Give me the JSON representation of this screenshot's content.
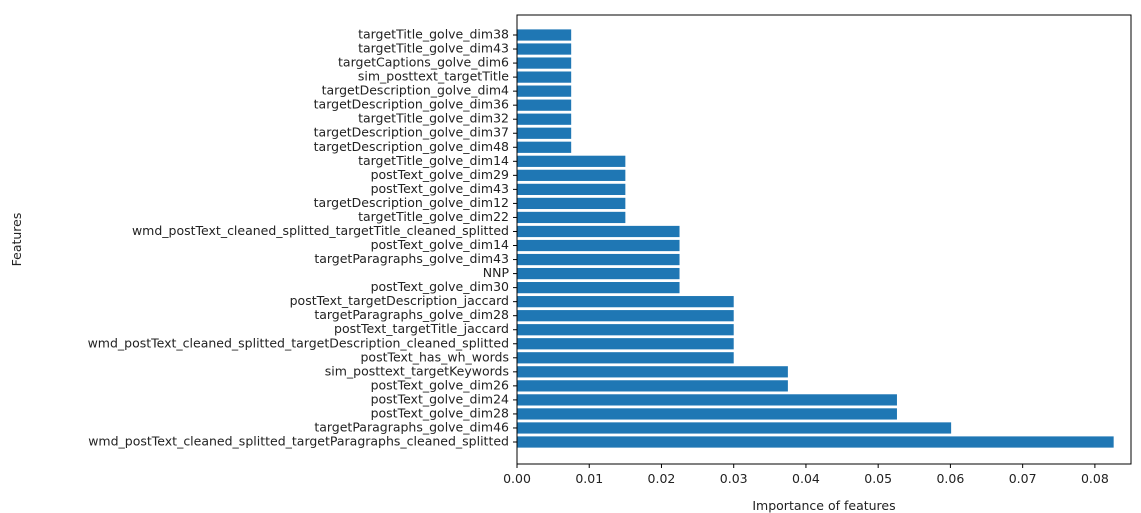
{
  "chart_data": {
    "type": "bar",
    "orientation": "horizontal",
    "xlabel": "Importance of features",
    "ylabel": "Features",
    "xlim": [
      0.0,
      0.085
    ],
    "x_ticks": [
      0.0,
      0.01,
      0.02,
      0.03,
      0.04,
      0.05,
      0.06,
      0.07,
      0.08
    ],
    "x_tick_labels": [
      "0.00",
      "0.01",
      "0.02",
      "0.03",
      "0.04",
      "0.05",
      "0.06",
      "0.07",
      "0.08"
    ],
    "grid": false,
    "bar_color": "#1f77b4",
    "categories": [
      "wmd_postText_cleaned_splitted_targetParagraphs_cleaned_splitted",
      "targetParagraphs_golve_dim46",
      "postText_golve_dim28",
      "postText_golve_dim24",
      "postText_golve_dim26",
      "sim_posttext_targetKeywords",
      "postText_has_wh_words",
      "wmd_postText_cleaned_splitted_targetDescription_cleaned_splitted",
      "postText_targetTitle_jaccard",
      "targetParagraphs_golve_dim28",
      "postText_targetDescription_jaccard",
      "postText_golve_dim30",
      "NNP",
      "targetParagraphs_golve_dim43",
      "postText_golve_dim14",
      "wmd_postText_cleaned_splitted_targetTitle_cleaned_splitted",
      "targetTitle_golve_dim22",
      "targetDescription_golve_dim12",
      "postText_golve_dim43",
      "postText_golve_dim29",
      "targetTitle_golve_dim14",
      "targetDescription_golve_dim48",
      "targetDescription_golve_dim37",
      "targetTitle_golve_dim32",
      "targetDescription_golve_dim36",
      "targetDescription_golve_dim4",
      "sim_posttext_targetTitle",
      "targetCaptions_golve_dim6",
      "targetTitle_golve_dim43",
      "targetTitle_golve_dim38"
    ],
    "values": [
      0.0826,
      0.0601,
      0.0526,
      0.0526,
      0.0375,
      0.0375,
      0.03,
      0.03,
      0.03,
      0.03,
      0.03,
      0.0225,
      0.0225,
      0.0225,
      0.0225,
      0.0225,
      0.015,
      0.015,
      0.015,
      0.015,
      0.015,
      0.0075,
      0.0075,
      0.0075,
      0.0075,
      0.0075,
      0.0075,
      0.0075,
      0.0075,
      0.0075
    ]
  }
}
